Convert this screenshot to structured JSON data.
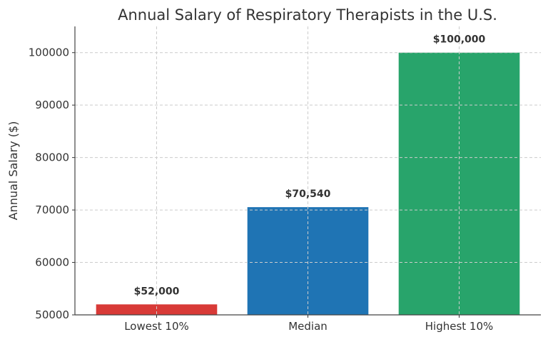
{
  "chart_data": {
    "type": "bar",
    "title": "Annual Salary of Respiratory Therapists in the U.S.",
    "xlabel": "",
    "ylabel": "Annual Salary ($)",
    "categories": [
      "Lowest 10%",
      "Median",
      "Highest 10%"
    ],
    "values": [
      52000,
      70540,
      100000
    ],
    "data_labels": [
      "$52,000",
      "$70,540",
      "$100,000"
    ],
    "colors": [
      "#d83a37",
      "#1f74b4",
      "#28a46b"
    ],
    "ylim": [
      50000,
      105000
    ],
    "yticks": [
      50000,
      60000,
      70000,
      80000,
      90000,
      100000
    ],
    "ytick_labels": [
      "50000",
      "60000",
      "70000",
      "80000",
      "90000",
      "100000"
    ],
    "grid": true,
    "grid_style": "dashed",
    "legend": "none"
  }
}
